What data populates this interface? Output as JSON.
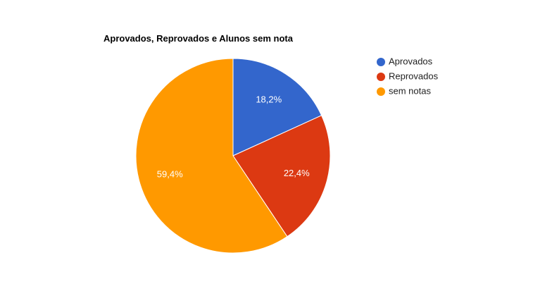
{
  "chart_data": {
    "type": "pie",
    "title": "Aprovados, Reprovados e Alunos sem nota",
    "categories": [
      "Aprovados",
      "Reprovados",
      "sem notas"
    ],
    "values": [
      18.2,
      22.4,
      59.4
    ],
    "value_labels": [
      "18,2%",
      "22,4%",
      "59,4%"
    ],
    "colors": [
      "#3366cc",
      "#dc3912",
      "#ff9900"
    ],
    "legend_position": "right",
    "start_angle": "top",
    "direction": "clockwise"
  }
}
